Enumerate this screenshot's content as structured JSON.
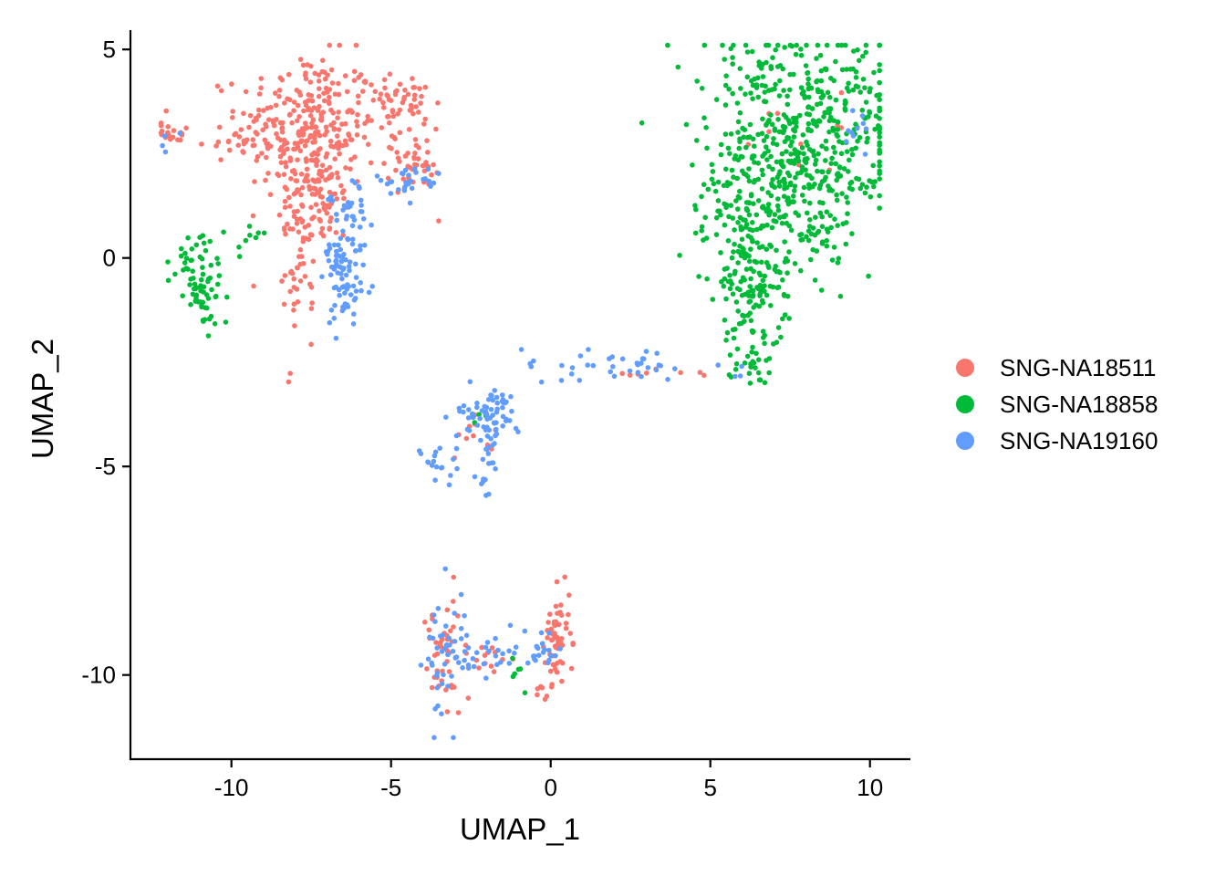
{
  "chart_data": {
    "type": "scatter",
    "title": "",
    "xlabel": "UMAP_1",
    "ylabel": "UMAP_2",
    "xlim": [
      -13.0,
      11.3
    ],
    "ylim": [
      -12.0,
      5.5
    ],
    "xticks": [
      -10,
      -5,
      0,
      5,
      10
    ],
    "xtick_labels": [
      "-10",
      "-5",
      "0",
      "5",
      "10"
    ],
    "yticks": [
      5,
      0,
      -5,
      -10
    ],
    "ytick_labels": [
      "5",
      "0",
      "-5",
      "-10"
    ],
    "grid": false,
    "legend_position": "right",
    "series": [
      {
        "name": "SNG-NA18511",
        "color": "#F8766D",
        "clusters": [
          {
            "cx": -7.6,
            "cy": 3.1,
            "sx": 1.1,
            "sy": 0.9,
            "n": 300
          },
          {
            "cx": -4.8,
            "cy": 3.8,
            "sx": 0.45,
            "sy": 0.35,
            "n": 50
          },
          {
            "cx": -4.4,
            "cy": 2.3,
            "sx": 0.5,
            "sy": 0.4,
            "n": 45
          },
          {
            "cx": -7.4,
            "cy": 1.4,
            "sx": 0.55,
            "sy": 0.6,
            "n": 80
          },
          {
            "cx": -7.9,
            "cy": -0.1,
            "sx": 0.25,
            "sy": 0.9,
            "n": 50
          },
          {
            "cx": -11.8,
            "cy": 3.0,
            "sx": 0.3,
            "sy": 0.12,
            "n": 18
          },
          {
            "cx": -10.2,
            "cy": 2.7,
            "sx": 0.5,
            "sy": 0.12,
            "n": 12
          },
          {
            "cx": 0.2,
            "cy": -9.1,
            "sx": 0.2,
            "sy": 0.5,
            "n": 60
          },
          {
            "cx": -3.3,
            "cy": -9.6,
            "sx": 0.35,
            "sy": 0.7,
            "n": 45
          },
          {
            "cx": -2.0,
            "cy": -9.6,
            "sx": 0.7,
            "sy": 0.15,
            "n": 15
          },
          {
            "cx": -0.4,
            "cy": -10.4,
            "sx": 0.15,
            "sy": 0.15,
            "n": 8
          },
          {
            "cx": -2.3,
            "cy": -4.2,
            "sx": 0.4,
            "sy": 0.25,
            "n": 10
          },
          {
            "cx": 3.5,
            "cy": -2.8,
            "sx": 1.0,
            "sy": 0.08,
            "n": 8
          },
          {
            "cx": 7.5,
            "cy": 3.0,
            "sx": 1.5,
            "sy": 0.6,
            "n": 10
          }
        ]
      },
      {
        "name": "SNG-NA18858",
        "color": "#00BA38",
        "clusters": [
          {
            "cx": 8.0,
            "cy": 3.0,
            "sx": 1.5,
            "sy": 1.2,
            "n": 500
          },
          {
            "cx": 6.3,
            "cy": 1.0,
            "sx": 0.9,
            "sy": 0.9,
            "n": 150
          },
          {
            "cx": 6.4,
            "cy": -0.7,
            "sx": 0.6,
            "sy": 0.6,
            "n": 80
          },
          {
            "cx": 6.3,
            "cy": -2.3,
            "sx": 0.4,
            "sy": 0.4,
            "n": 45
          },
          {
            "cx": 8.6,
            "cy": 0.8,
            "sx": 0.3,
            "sy": 0.8,
            "n": 30
          },
          {
            "cx": -10.9,
            "cy": -0.6,
            "sx": 0.4,
            "sy": 0.6,
            "n": 65
          },
          {
            "cx": -11.5,
            "cy": -0.15,
            "sx": 0.2,
            "sy": 0.15,
            "n": 10
          },
          {
            "cx": -9.5,
            "cy": 0.6,
            "sx": 0.5,
            "sy": 0.15,
            "n": 8
          },
          {
            "cx": -1.0,
            "cy": -9.9,
            "sx": 0.2,
            "sy": 0.2,
            "n": 6
          },
          {
            "cx": -2.3,
            "cy": -4.1,
            "sx": 0.2,
            "sy": 0.3,
            "n": 3
          }
        ]
      },
      {
        "name": "SNG-NA19160",
        "color": "#619CFF",
        "clusters": [
          {
            "cx": -6.5,
            "cy": -0.2,
            "sx": 0.35,
            "sy": 0.9,
            "n": 90
          },
          {
            "cx": -6.2,
            "cy": 1.1,
            "sx": 0.3,
            "sy": 0.35,
            "n": 20
          },
          {
            "cx": -4.4,
            "cy": 1.9,
            "sx": 0.5,
            "sy": 0.2,
            "n": 30
          },
          {
            "cx": -2.0,
            "cy": -3.8,
            "sx": 0.45,
            "sy": 0.4,
            "n": 70
          },
          {
            "cx": -3.6,
            "cy": -4.9,
            "sx": 0.5,
            "sy": 0.3,
            "n": 20
          },
          {
            "cx": -2.0,
            "cy": -5.1,
            "sx": 0.15,
            "sy": 0.4,
            "n": 15
          },
          {
            "cx": -3.4,
            "cy": -9.6,
            "sx": 0.35,
            "sy": 0.9,
            "n": 40
          },
          {
            "cx": -2.0,
            "cy": -9.5,
            "sx": 0.7,
            "sy": 0.35,
            "n": 30
          },
          {
            "cx": -0.2,
            "cy": -9.4,
            "sx": 0.3,
            "sy": 0.3,
            "n": 20
          },
          {
            "cx": 2.2,
            "cy": -2.6,
            "sx": 1.6,
            "sy": 0.18,
            "n": 40
          },
          {
            "cx": 9.6,
            "cy": 3.3,
            "sx": 0.3,
            "sy": 0.4,
            "n": 10
          },
          {
            "cx": -11.9,
            "cy": 2.9,
            "sx": 0.15,
            "sy": 0.1,
            "n": 4
          }
        ]
      }
    ]
  }
}
